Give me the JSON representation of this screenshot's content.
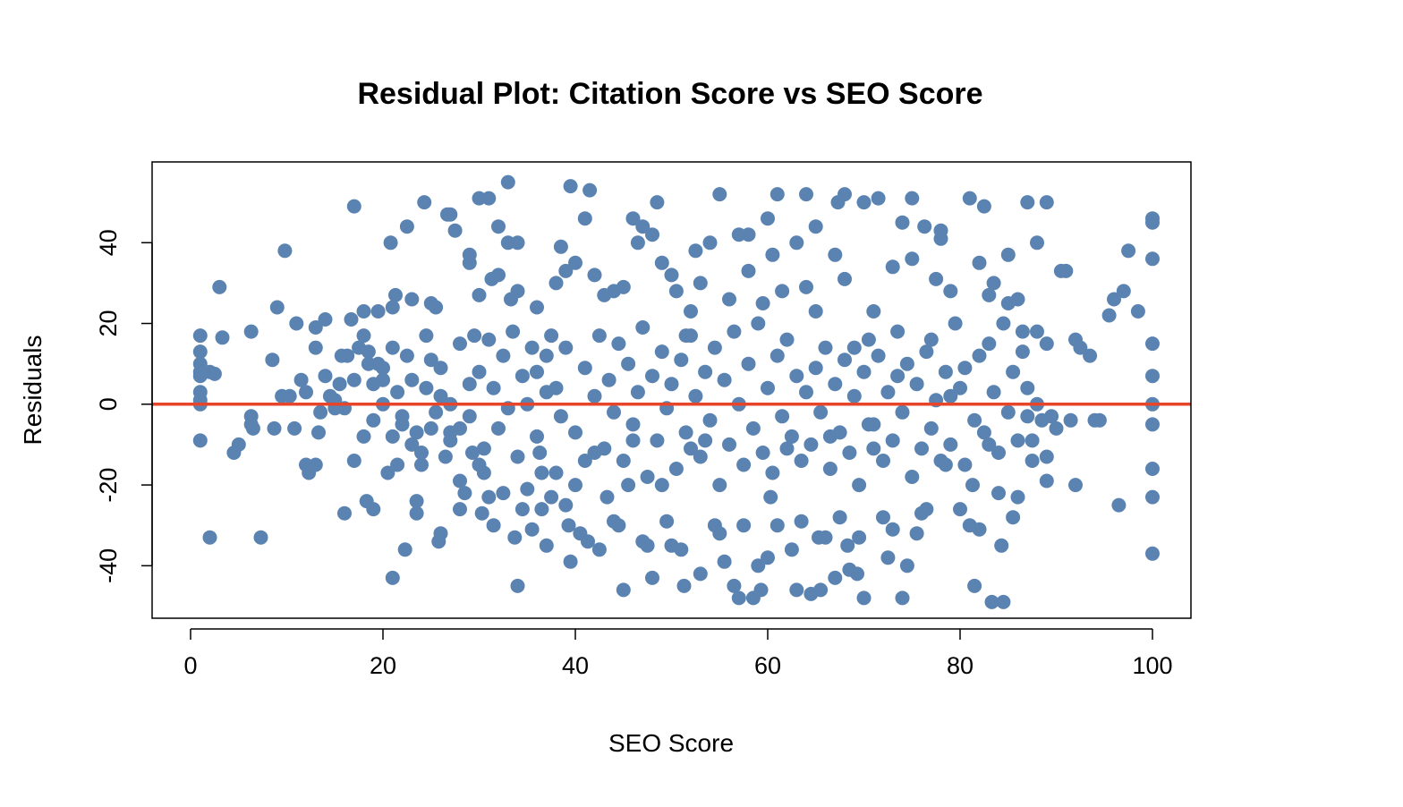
{
  "chart_data": {
    "type": "scatter",
    "title": "Residual Plot: Citation Score vs SEO Score",
    "xlabel": "SEO Score",
    "ylabel": "Residuals",
    "xlim": [
      -4,
      104
    ],
    "ylim": [
      -53,
      60
    ],
    "xticks": [
      0,
      20,
      40,
      60,
      80,
      100
    ],
    "yticks": [
      -40,
      -20,
      0,
      20,
      40
    ],
    "xtick_labels": [
      "0",
      "20",
      "40",
      "60",
      "80",
      "100"
    ],
    "ytick_labels": [
      "-40",
      "-20",
      "0",
      "20",
      "40"
    ],
    "reference_line": {
      "y": 0,
      "color": "#e8442a"
    },
    "point_color": "#5b83b1",
    "grid": false,
    "points": [
      [
        1,
        17
      ],
      [
        1,
        13
      ],
      [
        1,
        10
      ],
      [
        1,
        8
      ],
      [
        1,
        7
      ],
      [
        1,
        3
      ],
      [
        1,
        1
      ],
      [
        1,
        0
      ],
      [
        1,
        -9
      ],
      [
        2,
        8
      ],
      [
        2,
        -33
      ],
      [
        2.5,
        7.5
      ],
      [
        3,
        29
      ],
      [
        3.3,
        16.5
      ],
      [
        4.5,
        -12
      ],
      [
        5,
        -10
      ],
      [
        6.3,
        18
      ],
      [
        6.3,
        -3
      ],
      [
        6.3,
        -5
      ],
      [
        6.5,
        -6
      ],
      [
        7.3,
        -33
      ],
      [
        8.5,
        11
      ],
      [
        8.7,
        -6
      ],
      [
        9,
        24
      ],
      [
        9.5,
        2
      ],
      [
        9.8,
        38
      ],
      [
        10.3,
        2
      ],
      [
        10.8,
        -6
      ],
      [
        11,
        20
      ],
      [
        11.5,
        6
      ],
      [
        12,
        -15
      ],
      [
        12.3,
        -17
      ],
      [
        13,
        19
      ],
      [
        13,
        14
      ],
      [
        13,
        -15
      ],
      [
        13.3,
        -7
      ],
      [
        13.5,
        -2
      ],
      [
        14,
        21
      ],
      [
        14.5,
        2
      ],
      [
        15,
        -1
      ],
      [
        15.5,
        5
      ],
      [
        15.7,
        12
      ],
      [
        16,
        -27
      ],
      [
        16.3,
        12
      ],
      [
        16.7,
        21
      ],
      [
        17,
        -14
      ],
      [
        17,
        49
      ],
      [
        17.5,
        14
      ],
      [
        18,
        23
      ],
      [
        18,
        17
      ],
      [
        18.3,
        -24
      ],
      [
        18.5,
        10
      ],
      [
        19,
        5
      ],
      [
        19,
        -26
      ],
      [
        19.5,
        23
      ],
      [
        20,
        0
      ],
      [
        20,
        6
      ],
      [
        20.5,
        -17
      ],
      [
        20.8,
        40
      ],
      [
        21,
        24
      ],
      [
        21,
        -8
      ],
      [
        21,
        -43
      ],
      [
        21.3,
        27
      ],
      [
        21.5,
        -15
      ],
      [
        22,
        -3
      ],
      [
        22.3,
        -36
      ],
      [
        22.5,
        44
      ],
      [
        23,
        26
      ],
      [
        23,
        -10
      ],
      [
        23.5,
        -24
      ],
      [
        23.5,
        -27
      ],
      [
        24,
        -15
      ],
      [
        24.3,
        50
      ],
      [
        24.5,
        17
      ],
      [
        25,
        25
      ],
      [
        25,
        -6
      ],
      [
        25.5,
        24
      ],
      [
        25.8,
        -34
      ],
      [
        26,
        -32
      ],
      [
        26.5,
        -13
      ],
      [
        26.7,
        47
      ],
      [
        27,
        47
      ],
      [
        27,
        -7
      ],
      [
        27.5,
        43
      ],
      [
        28,
        -26
      ],
      [
        28,
        -19
      ],
      [
        28.5,
        -22
      ],
      [
        29,
        37
      ],
      [
        29,
        35
      ],
      [
        29.3,
        -12
      ],
      [
        29.5,
        17
      ],
      [
        30,
        51
      ],
      [
        30,
        27
      ],
      [
        30,
        -15
      ],
      [
        30.3,
        -27
      ],
      [
        30.5,
        -17
      ],
      [
        31,
        51
      ],
      [
        31,
        -23
      ],
      [
        31.3,
        31
      ],
      [
        31.5,
        -30
      ],
      [
        32,
        44
      ],
      [
        32,
        32
      ],
      [
        32.5,
        -22
      ],
      [
        33,
        55
      ],
      [
        33,
        40
      ],
      [
        33.3,
        26
      ],
      [
        33.7,
        -33
      ],
      [
        34,
        40
      ],
      [
        34,
        28
      ],
      [
        34,
        -45
      ],
      [
        34.5,
        -26
      ],
      [
        35,
        -21
      ],
      [
        35.5,
        -31
      ],
      [
        36,
        24
      ],
      [
        36.3,
        -12
      ],
      [
        36.5,
        -26
      ],
      [
        37,
        -35
      ],
      [
        37.5,
        -23
      ],
      [
        38,
        30
      ],
      [
        38,
        -17
      ],
      [
        38.5,
        39
      ],
      [
        39,
        33
      ],
      [
        39,
        -25
      ],
      [
        39.3,
        -30
      ],
      [
        39.5,
        54
      ],
      [
        39.5,
        -39
      ],
      [
        40,
        35
      ],
      [
        40,
        -20
      ],
      [
        40.5,
        -32
      ],
      [
        41,
        46
      ],
      [
        41,
        -14
      ],
      [
        41.3,
        -34
      ],
      [
        41.5,
        53
      ],
      [
        42,
        32
      ],
      [
        42,
        -12
      ],
      [
        42.5,
        -36
      ],
      [
        43,
        27
      ],
      [
        43.3,
        -23
      ],
      [
        44,
        28
      ],
      [
        44,
        -29
      ],
      [
        44.5,
        -30
      ],
      [
        45,
        29
      ],
      [
        45,
        -46
      ],
      [
        45.5,
        -20
      ],
      [
        46,
        46
      ],
      [
        46,
        -9
      ],
      [
        46.5,
        40
      ],
      [
        47,
        44
      ],
      [
        47,
        -34
      ],
      [
        47.5,
        -35
      ],
      [
        48,
        42
      ],
      [
        48,
        -43
      ],
      [
        48.5,
        50
      ],
      [
        49,
        35
      ],
      [
        49,
        -20
      ],
      [
        49.5,
        -29
      ],
      [
        50,
        32
      ],
      [
        50,
        -35
      ],
      [
        50.5,
        28
      ],
      [
        51,
        -36
      ],
      [
        51.3,
        -45
      ],
      [
        51.5,
        17
      ],
      [
        52,
        23
      ],
      [
        52,
        -11
      ],
      [
        52.5,
        38
      ],
      [
        53,
        30
      ],
      [
        53,
        -42
      ],
      [
        53.5,
        -9
      ],
      [
        54,
        40
      ],
      [
        54.5,
        -30
      ],
      [
        55,
        52
      ],
      [
        55,
        -32
      ],
      [
        55.5,
        -39
      ],
      [
        56,
        26
      ],
      [
        56.5,
        -45
      ],
      [
        57,
        42
      ],
      [
        57,
        -48
      ],
      [
        57.5,
        -30
      ],
      [
        58,
        42
      ],
      [
        58,
        33
      ],
      [
        58.5,
        -48
      ],
      [
        59,
        -40
      ],
      [
        59.3,
        -46
      ],
      [
        59.5,
        25
      ],
      [
        60,
        46
      ],
      [
        60,
        -38
      ],
      [
        60.3,
        -23
      ],
      [
        60.5,
        37
      ],
      [
        61,
        52
      ],
      [
        61,
        -30
      ],
      [
        61.5,
        28
      ],
      [
        62,
        -11
      ],
      [
        62.5,
        -36
      ],
      [
        63,
        40
      ],
      [
        63,
        -46
      ],
      [
        63.5,
        -29
      ],
      [
        64,
        52
      ],
      [
        64,
        29
      ],
      [
        64.5,
        -47
      ],
      [
        65,
        44
      ],
      [
        65,
        23
      ],
      [
        65.3,
        -33
      ],
      [
        65.5,
        -46
      ],
      [
        66,
        -33
      ],
      [
        66.5,
        -8
      ],
      [
        67,
        37
      ],
      [
        67,
        -43
      ],
      [
        67.3,
        50
      ],
      [
        67.5,
        -28
      ],
      [
        68,
        52
      ],
      [
        68,
        31
      ],
      [
        68.3,
        -35
      ],
      [
        68.5,
        -41
      ],
      [
        69,
        14
      ],
      [
        69.3,
        -42
      ],
      [
        69.5,
        -33
      ],
      [
        70,
        50
      ],
      [
        70,
        -48
      ],
      [
        70.5,
        -5
      ],
      [
        71,
        23
      ],
      [
        71,
        -11
      ],
      [
        71.5,
        51
      ],
      [
        72,
        -28
      ],
      [
        72.5,
        -38
      ],
      [
        73,
        34
      ],
      [
        73,
        -31
      ],
      [
        73.5,
        7
      ],
      [
        74,
        45
      ],
      [
        74,
        -48
      ],
      [
        74.5,
        -40
      ],
      [
        75,
        51
      ],
      [
        75,
        36
      ],
      [
        75.5,
        -32
      ],
      [
        76,
        -27
      ],
      [
        76.3,
        44
      ],
      [
        76.5,
        -26
      ],
      [
        77,
        16
      ],
      [
        77.5,
        31
      ],
      [
        78,
        43
      ],
      [
        78,
        41
      ],
      [
        78.5,
        -15
      ],
      [
        79,
        28
      ],
      [
        79,
        -10
      ],
      [
        79.5,
        20
      ],
      [
        80,
        -26
      ],
      [
        80,
        4
      ],
      [
        80.5,
        -15
      ],
      [
        81,
        51
      ],
      [
        81,
        -30
      ],
      [
        81.3,
        -20
      ],
      [
        81.5,
        -45
      ],
      [
        82,
        35
      ],
      [
        82,
        -31
      ],
      [
        82.5,
        49
      ],
      [
        83,
        27
      ],
      [
        83,
        -10
      ],
      [
        83.3,
        -49
      ],
      [
        83.5,
        30
      ],
      [
        84,
        -22
      ],
      [
        84.3,
        -35
      ],
      [
        84.5,
        -49
      ],
      [
        85,
        37
      ],
      [
        85,
        25
      ],
      [
        85.5,
        -28
      ],
      [
        86,
        26
      ],
      [
        86,
        -23
      ],
      [
        86.5,
        18
      ],
      [
        87,
        50
      ],
      [
        87,
        -3
      ],
      [
        87.5,
        -9
      ],
      [
        88,
        40
      ],
      [
        88,
        0
      ],
      [
        88.5,
        -4
      ],
      [
        89,
        50
      ],
      [
        89,
        15
      ],
      [
        89,
        -13
      ],
      [
        89,
        -19
      ],
      [
        89.5,
        -3
      ],
      [
        90,
        -6
      ],
      [
        90.5,
        33
      ],
      [
        91,
        33
      ],
      [
        91.5,
        -4
      ],
      [
        92,
        16
      ],
      [
        92,
        -20
      ],
      [
        92.5,
        14
      ],
      [
        93.5,
        12
      ],
      [
        94,
        -4
      ],
      [
        94.5,
        -4
      ],
      [
        95.5,
        22
      ],
      [
        96,
        26
      ],
      [
        96.5,
        -25
      ],
      [
        97,
        28
      ],
      [
        97.5,
        38
      ],
      [
        98.5,
        23
      ],
      [
        100,
        46
      ],
      [
        100,
        45
      ],
      [
        100,
        36
      ],
      [
        100,
        15
      ],
      [
        100,
        7
      ],
      [
        100,
        0
      ],
      [
        100,
        -5
      ],
      [
        100,
        -16
      ],
      [
        100,
        -23
      ],
      [
        100,
        -37
      ],
      [
        36,
        8
      ],
      [
        37,
        12
      ],
      [
        38,
        4
      ],
      [
        38.5,
        -3
      ],
      [
        39,
        14
      ],
      [
        40,
        -7
      ],
      [
        41,
        9
      ],
      [
        42,
        2
      ],
      [
        42.5,
        17
      ],
      [
        43,
        -11
      ],
      [
        43.5,
        6
      ],
      [
        44,
        -2
      ],
      [
        44.5,
        15
      ],
      [
        45,
        -14
      ],
      [
        45.5,
        10
      ],
      [
        46,
        -5
      ],
      [
        46.5,
        3
      ],
      [
        47,
        19
      ],
      [
        47.5,
        -18
      ],
      [
        48,
        7
      ],
      [
        48.5,
        -9
      ],
      [
        49,
        13
      ],
      [
        49.5,
        -1
      ],
      [
        50,
        5
      ],
      [
        50.5,
        -16
      ],
      [
        51,
        11
      ],
      [
        51.5,
        -7
      ],
      [
        52,
        17
      ],
      [
        52.5,
        2
      ],
      [
        53,
        -13
      ],
      [
        53.5,
        8
      ],
      [
        54,
        -4
      ],
      [
        54.5,
        14
      ],
      [
        55,
        -20
      ],
      [
        55.5,
        6
      ],
      [
        56,
        -10
      ],
      [
        56.5,
        18
      ],
      [
        57,
        0
      ],
      [
        57.5,
        -15
      ],
      [
        58,
        10
      ],
      [
        58.5,
        -6
      ],
      [
        59,
        20
      ],
      [
        59.5,
        -12
      ],
      [
        60,
        4
      ],
      [
        60.5,
        -17
      ],
      [
        61,
        12
      ],
      [
        61.5,
        -3
      ],
      [
        62,
        16
      ],
      [
        62.5,
        -8
      ],
      [
        63,
        7
      ],
      [
        63.5,
        -14
      ],
      [
        64,
        3
      ],
      [
        64.5,
        -10
      ],
      [
        65,
        9
      ],
      [
        65.5,
        -2
      ],
      [
        66,
        14
      ],
      [
        66.5,
        -16
      ],
      [
        67,
        5
      ],
      [
        67.5,
        -7
      ],
      [
        68,
        11
      ],
      [
        68.5,
        -12
      ],
      [
        69,
        2
      ],
      [
        69.5,
        -20
      ],
      [
        70,
        8
      ],
      [
        70.5,
        16
      ],
      [
        71,
        -5
      ],
      [
        71.5,
        12
      ],
      [
        72,
        -14
      ],
      [
        72.5,
        3
      ],
      [
        73,
        -9
      ],
      [
        73.5,
        18
      ],
      [
        74,
        -2
      ],
      [
        74.5,
        10
      ],
      [
        75,
        -18
      ],
      [
        75.5,
        5
      ],
      [
        76,
        -11
      ],
      [
        76.5,
        13
      ],
      [
        77,
        -6
      ],
      [
        77.5,
        1
      ],
      [
        78,
        -14
      ],
      [
        78.5,
        8
      ],
      [
        20,
        9
      ],
      [
        21,
        14
      ],
      [
        22,
        -5
      ],
      [
        23,
        6
      ],
      [
        24,
        -12
      ],
      [
        25,
        11
      ],
      [
        26,
        2
      ],
      [
        27,
        -9
      ],
      [
        28,
        15
      ],
      [
        29,
        -3
      ],
      [
        30,
        8
      ],
      [
        30.5,
        -11
      ],
      [
        31,
        16
      ],
      [
        31.5,
        4
      ],
      [
        32,
        -6
      ],
      [
        32.5,
        12
      ],
      [
        33,
        -1
      ],
      [
        33.5,
        18
      ],
      [
        34,
        -13
      ],
      [
        34.5,
        7
      ],
      [
        35,
        0
      ],
      [
        35.5,
        14
      ],
      [
        36,
        -8
      ],
      [
        36.5,
        -17
      ],
      [
        37,
        3
      ],
      [
        37.5,
        17
      ],
      [
        16,
        -1
      ],
      [
        17,
        6
      ],
      [
        18,
        -8
      ],
      [
        18.5,
        13
      ],
      [
        19,
        -4
      ],
      [
        19.5,
        10
      ],
      [
        14,
        7
      ],
      [
        15,
        1
      ],
      [
        12,
        3
      ],
      [
        79,
        2
      ],
      [
        80.5,
        9
      ],
      [
        81.5,
        -4
      ],
      [
        82,
        12
      ],
      [
        82.5,
        -7
      ],
      [
        83,
        15
      ],
      [
        83.5,
        3
      ],
      [
        84,
        -12
      ],
      [
        84.5,
        20
      ],
      [
        85,
        -2
      ],
      [
        85.5,
        8
      ],
      [
        86,
        -9
      ],
      [
        86.5,
        13
      ],
      [
        87,
        4
      ],
      [
        87.5,
        -14
      ],
      [
        88,
        18
      ],
      [
        27,
        0
      ],
      [
        28,
        -6
      ],
      [
        29,
        5
      ],
      [
        26,
        9
      ],
      [
        25.5,
        -2
      ],
      [
        24.5,
        4
      ],
      [
        23.5,
        -7
      ],
      [
        22.5,
        12
      ],
      [
        21.5,
        3
      ]
    ]
  }
}
